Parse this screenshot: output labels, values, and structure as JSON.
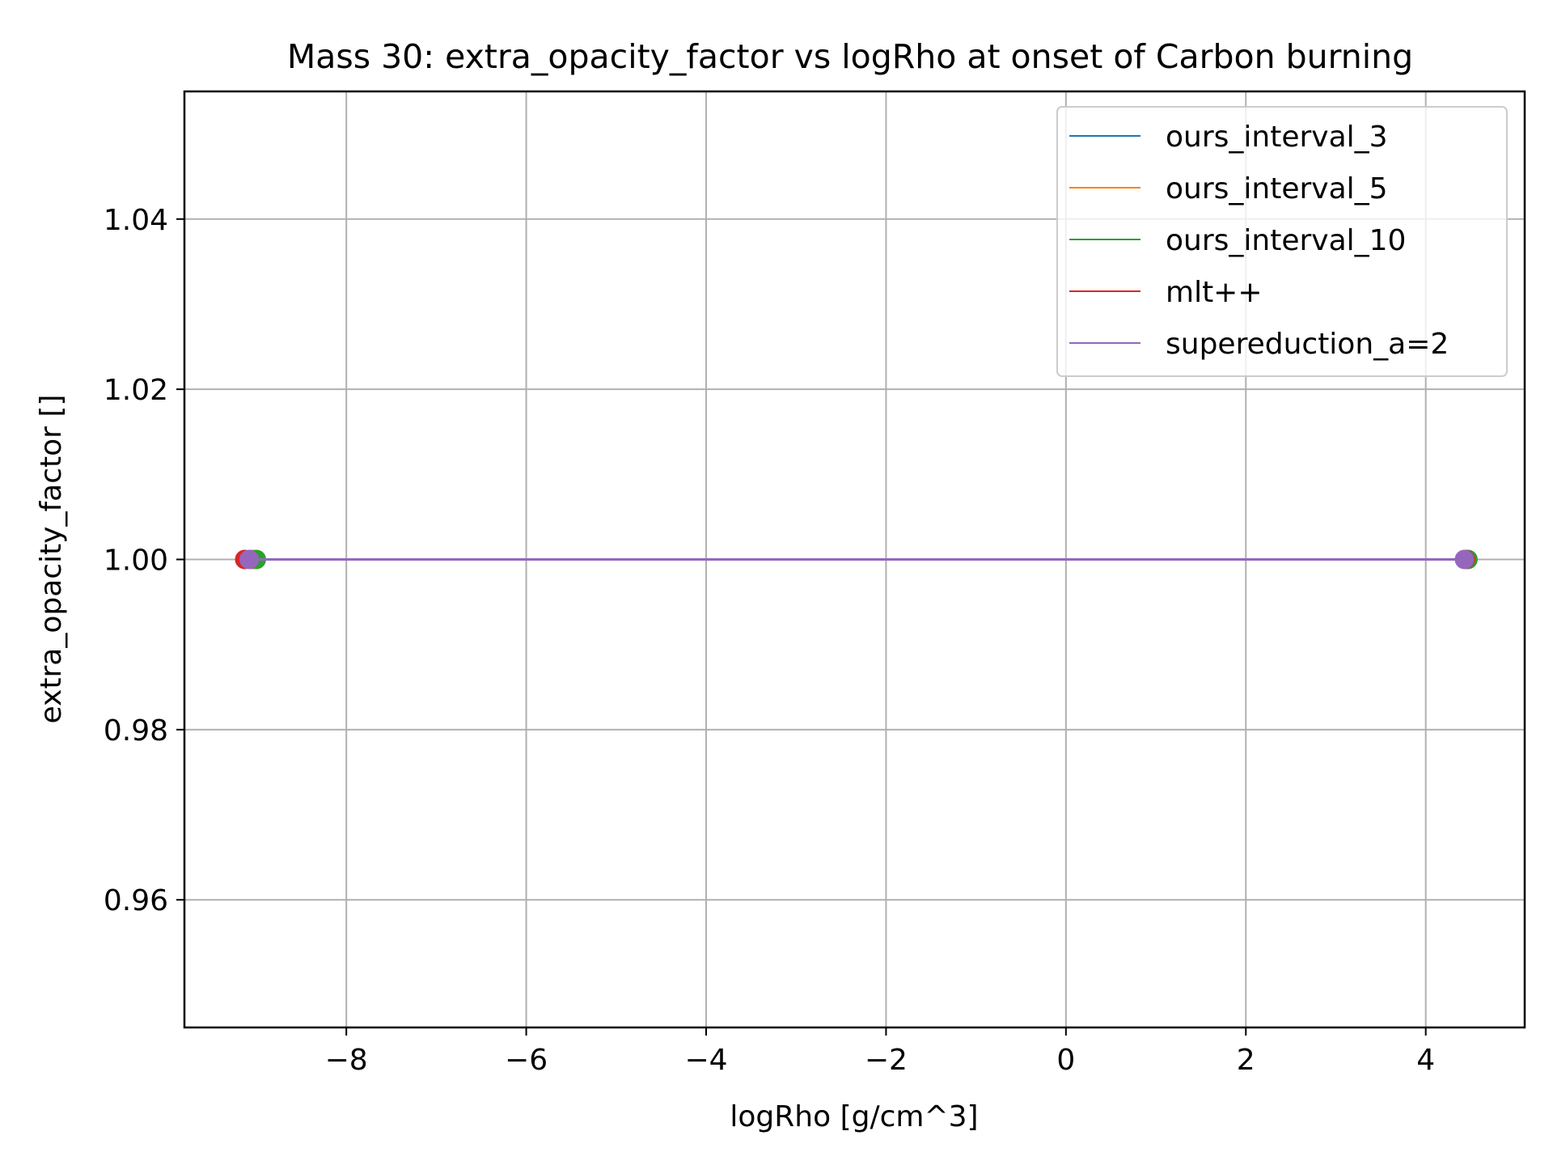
{
  "chart_data": {
    "type": "line",
    "title": "Mass 30: extra_opacity_factor vs logRho at onset of Carbon burning",
    "xlabel": "logRho [g/cm^3]",
    "ylabel": "extra_opacity_factor []",
    "xlim": [
      -9.8,
      5.1
    ],
    "ylim": [
      0.945,
      1.055
    ],
    "xticks": [
      -8,
      -6,
      -4,
      -2,
      0,
      2,
      4
    ],
    "xtick_labels": [
      "−8",
      "−6",
      "−4",
      "−2",
      "0",
      "2",
      "4"
    ],
    "yticks": [
      0.96,
      0.98,
      1.0,
      1.02,
      1.04
    ],
    "ytick_labels": [
      "0.96",
      "0.98",
      "1.00",
      "1.02",
      "1.04"
    ],
    "grid": true,
    "legend_position": "top-right",
    "series": [
      {
        "name": "ours_interval_3",
        "color": "#1f77b4",
        "x": [
          -9.05,
          4.45
        ],
        "y": [
          1.0,
          1.0
        ]
      },
      {
        "name": "ours_interval_5",
        "color": "#ff7f0e",
        "x": [
          -9.04,
          4.46
        ],
        "y": [
          1.0,
          1.0
        ]
      },
      {
        "name": "ours_interval_10",
        "color": "#2ca02c",
        "x": [
          -9.0,
          4.47
        ],
        "y": [
          1.0,
          1.0
        ]
      },
      {
        "name": "mlt++",
        "color": "#d62728",
        "x": [
          -9.13,
          4.44
        ],
        "y": [
          1.0,
          1.0
        ]
      },
      {
        "name": "supereduction_a=2",
        "color": "#9467bd",
        "x": [
          -9.08,
          4.43
        ],
        "y": [
          1.0,
          1.0
        ]
      }
    ]
  }
}
